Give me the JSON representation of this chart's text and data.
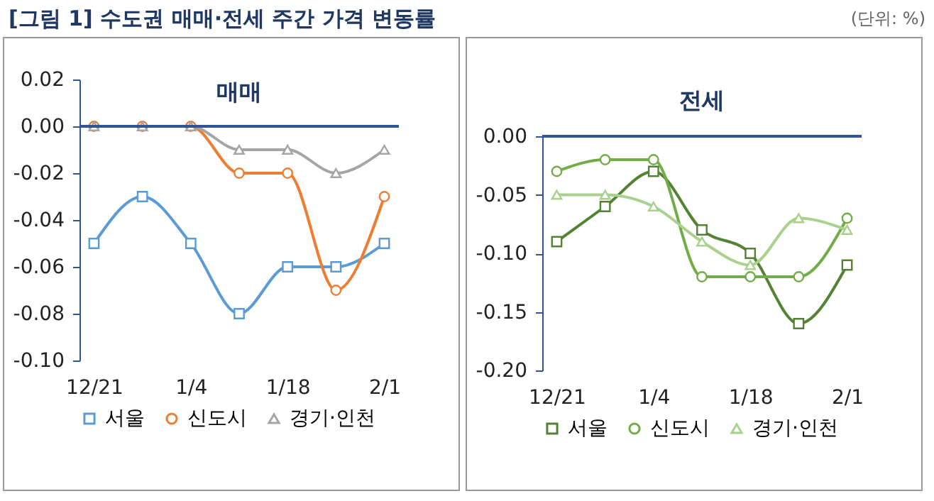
{
  "chart_data": [
    {
      "type": "line",
      "title": "[그림 1] 수도권 매매·전세 주간 가격 변동률",
      "subtitle": "매매",
      "categories": [
        "12/21",
        null,
        "1/4",
        null,
        "1/18",
        null,
        "2/1"
      ],
      "ylim": [
        -0.1,
        0.02
      ],
      "yticks": [
        {
          "value": -0.1,
          "label": "-0.10"
        },
        {
          "value": -0.08,
          "label": "-0.08"
        },
        {
          "value": -0.06,
          "label": "-0.06"
        },
        {
          "value": -0.04,
          "label": "-0.04"
        },
        {
          "value": -0.02,
          "label": "-0.02"
        },
        {
          "value": 0,
          "label": "0.00"
        },
        {
          "value": 0.02,
          "label": "0.02"
        }
      ],
      "grid": false,
      "legend": "bottom",
      "ref_lines": [
        {
          "axis": "y",
          "value": 0
        }
      ],
      "series": [
        {
          "name": "서울",
          "color": "#5b9bd5",
          "marker": "square",
          "values": [
            -0.05,
            -0.03,
            -0.05,
            -0.08,
            -0.06,
            -0.06,
            -0.05
          ]
        },
        {
          "name": "신도시",
          "color": "#ed7d31",
          "marker": "circle",
          "values": [
            0,
            0,
            0,
            -0.02,
            -0.02,
            -0.07,
            -0.03
          ]
        },
        {
          "name": "경기·인천",
          "color": "#a5a5a5",
          "marker": "triangle",
          "values": [
            0,
            0,
            0,
            -0.01,
            -0.01,
            -0.02,
            -0.01
          ]
        }
      ]
    },
    {
      "type": "line",
      "subtitle": "전세",
      "annotations": [
        "(단위: %)"
      ],
      "categories": [
        "12/21",
        null,
        "1/4",
        null,
        "1/18",
        null,
        "2/1"
      ],
      "ylim": [
        -0.2,
        0
      ],
      "yticks": [
        {
          "value": -0.2,
          "label": "-0.20"
        },
        {
          "value": -0.15,
          "label": "-0.15"
        },
        {
          "value": -0.1,
          "label": "-0.10"
        },
        {
          "value": -0.05,
          "label": "-0.05"
        },
        {
          "value": 0,
          "label": "0.00"
        }
      ],
      "grid": false,
      "legend": "bottom",
      "ref_lines": [
        {
          "axis": "y",
          "value": 0
        }
      ],
      "series": [
        {
          "name": "서울",
          "color": "#548235",
          "marker": "square",
          "values": [
            -0.09,
            -0.06,
            -0.03,
            -0.08,
            -0.1,
            -0.16,
            -0.11
          ]
        },
        {
          "name": "신도시",
          "color": "#70ad47",
          "marker": "circle",
          "values": [
            -0.03,
            -0.02,
            -0.02,
            -0.12,
            -0.12,
            -0.12,
            -0.07
          ]
        },
        {
          "name": "경기·인천",
          "color": "#a9d18e",
          "marker": "triangle",
          "values": [
            -0.05,
            -0.05,
            -0.06,
            -0.09,
            -0.11,
            -0.07,
            -0.08
          ]
        }
      ]
    }
  ]
}
